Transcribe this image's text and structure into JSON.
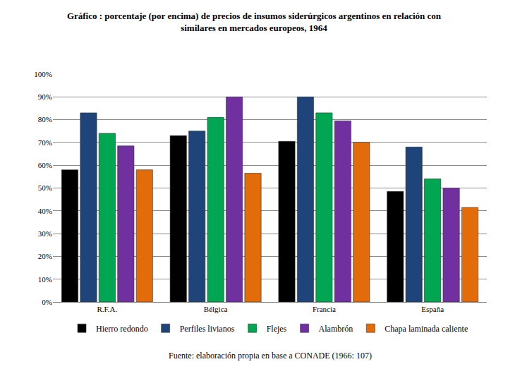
{
  "chart_data": {
    "type": "bar",
    "title": "Gráfico : porcentaje (por encima) de precios de insumos siderúrgicos argentinos en relación con\nsimilares en mercados europeos, 1964",
    "source": "Fuente: elaboración propia en base a CONADE (1966: 107)",
    "categories": [
      "R.F.A.",
      "Bélgica",
      "Francia",
      "España"
    ],
    "series": [
      {
        "name": "Hierro redondo",
        "color": "#000000",
        "values": [
          58,
          73,
          70.5,
          48.5
        ]
      },
      {
        "name": "Perfiles livianos",
        "color": "#1f4479",
        "values": [
          83,
          75,
          90,
          68
        ]
      },
      {
        "name": "Flejes",
        "color": "#00a651",
        "values": [
          74,
          81,
          83,
          54
        ]
      },
      {
        "name": "Alambrón",
        "color": "#7030a0",
        "values": [
          68.5,
          90,
          79.5,
          50
        ]
      },
      {
        "name": "Chapa laminada caliente",
        "color": "#e36c0a",
        "values": [
          58,
          56.5,
          70,
          41.5
        ]
      }
    ],
    "ylim": [
      0,
      100
    ],
    "yticks": [
      {
        "value": 0,
        "label": "0%"
      },
      {
        "value": 10,
        "label": "10%"
      },
      {
        "value": 20,
        "label": "20%"
      },
      {
        "value": 30,
        "label": "30%"
      },
      {
        "value": 40,
        "label": "40%"
      },
      {
        "value": 50,
        "label": "50%"
      },
      {
        "value": 60,
        "label": "60%"
      },
      {
        "value": 70,
        "label": "70%"
      },
      {
        "value": 80,
        "label": "80%"
      },
      {
        "value": 90,
        "label": "90%"
      },
      {
        "value": 100,
        "label": "100%"
      }
    ],
    "grid": true,
    "legend": "bottom"
  }
}
